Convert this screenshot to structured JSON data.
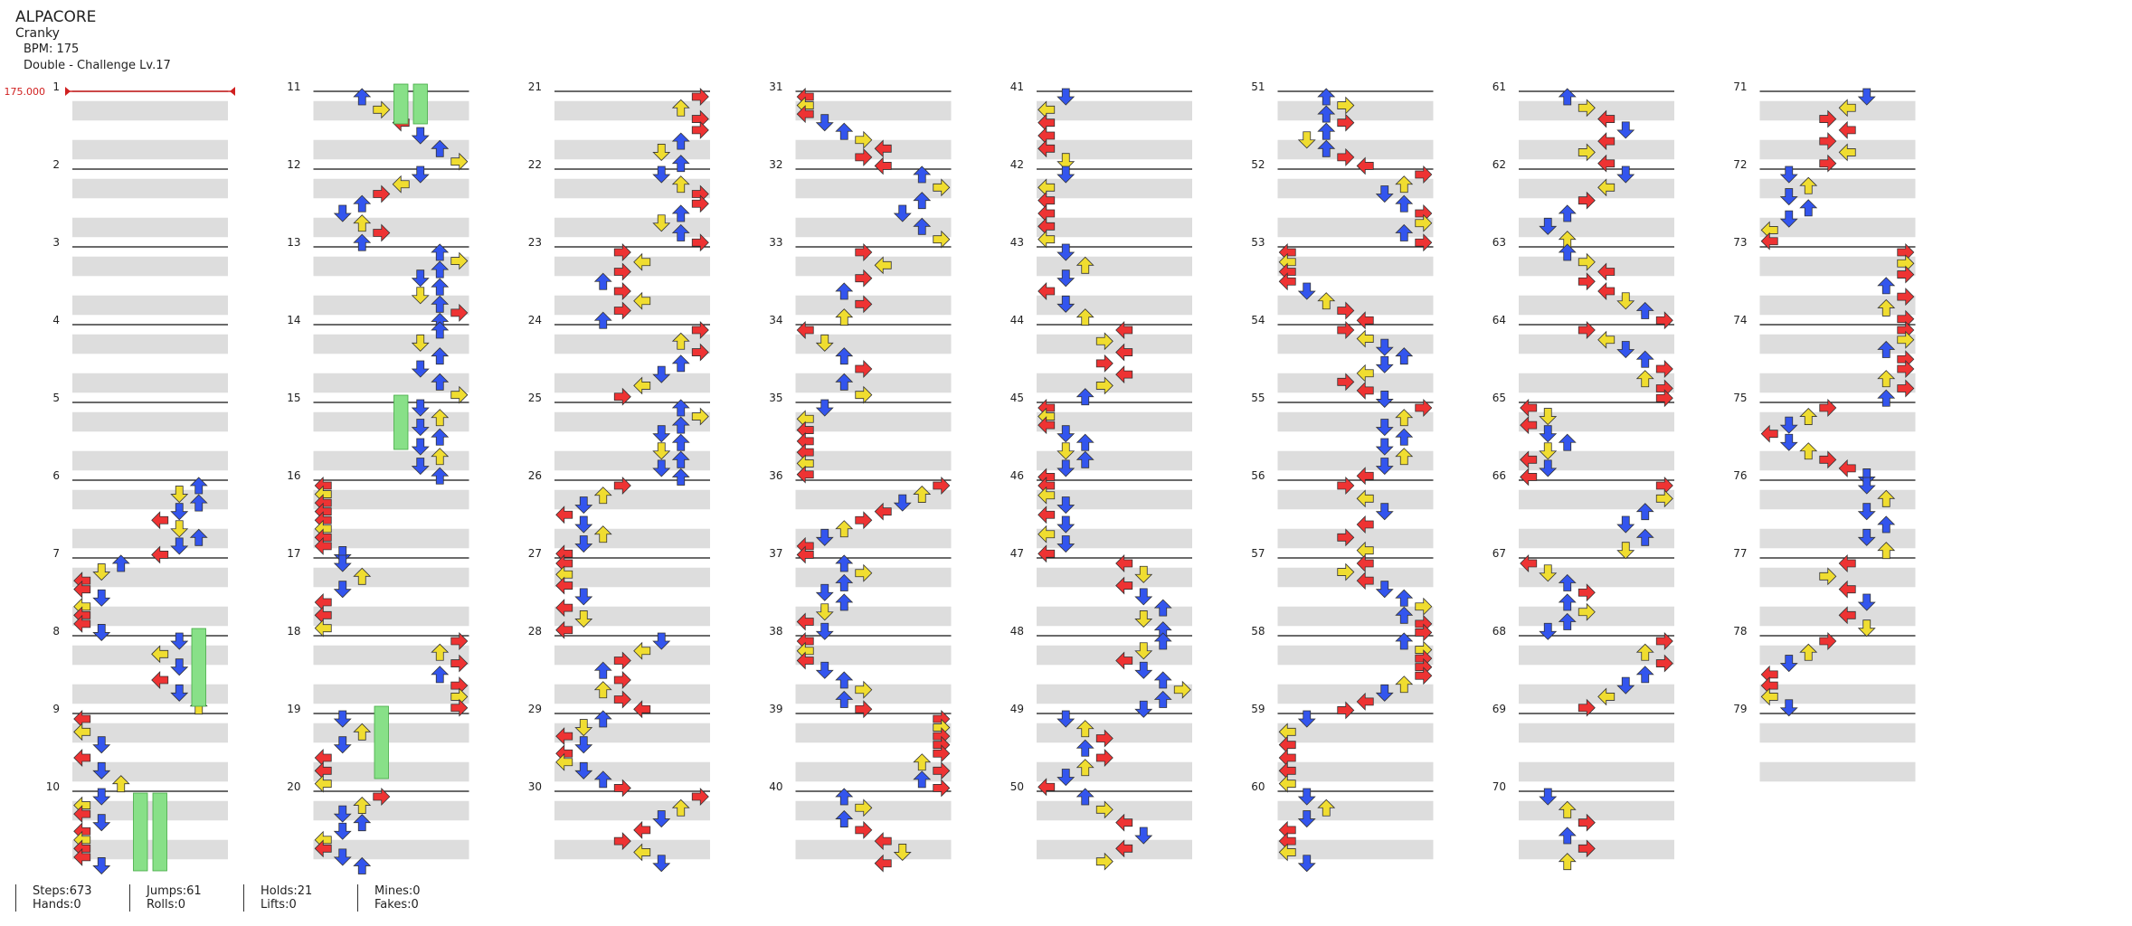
{
  "song": {
    "title": "ALPACORE",
    "artist": "Cranky",
    "bpm_text": "BPM: 175",
    "difficulty_text": "Double - Challenge Lv.17"
  },
  "bpm_change": {
    "measure": 1,
    "value": "175.000"
  },
  "measure_count": 79,
  "columns": 8,
  "measures_per_column": 10,
  "colors": {
    "red": "#ee3333",
    "blue": "#3355ee",
    "yellow": "#f0dd30",
    "purple": "#aa44ee",
    "hold": "#88e088",
    "row_shade": "#dddddd"
  },
  "stats": [
    {
      "label": "Steps:673",
      "label2": "Hands:0"
    },
    {
      "label": "Jumps:61",
      "label2": "Rolls:0"
    },
    {
      "label": "Holds:21",
      "label2": "Lifts:0"
    },
    {
      "label": "Mines:0",
      "label2": "Fakes:0"
    }
  ]
}
